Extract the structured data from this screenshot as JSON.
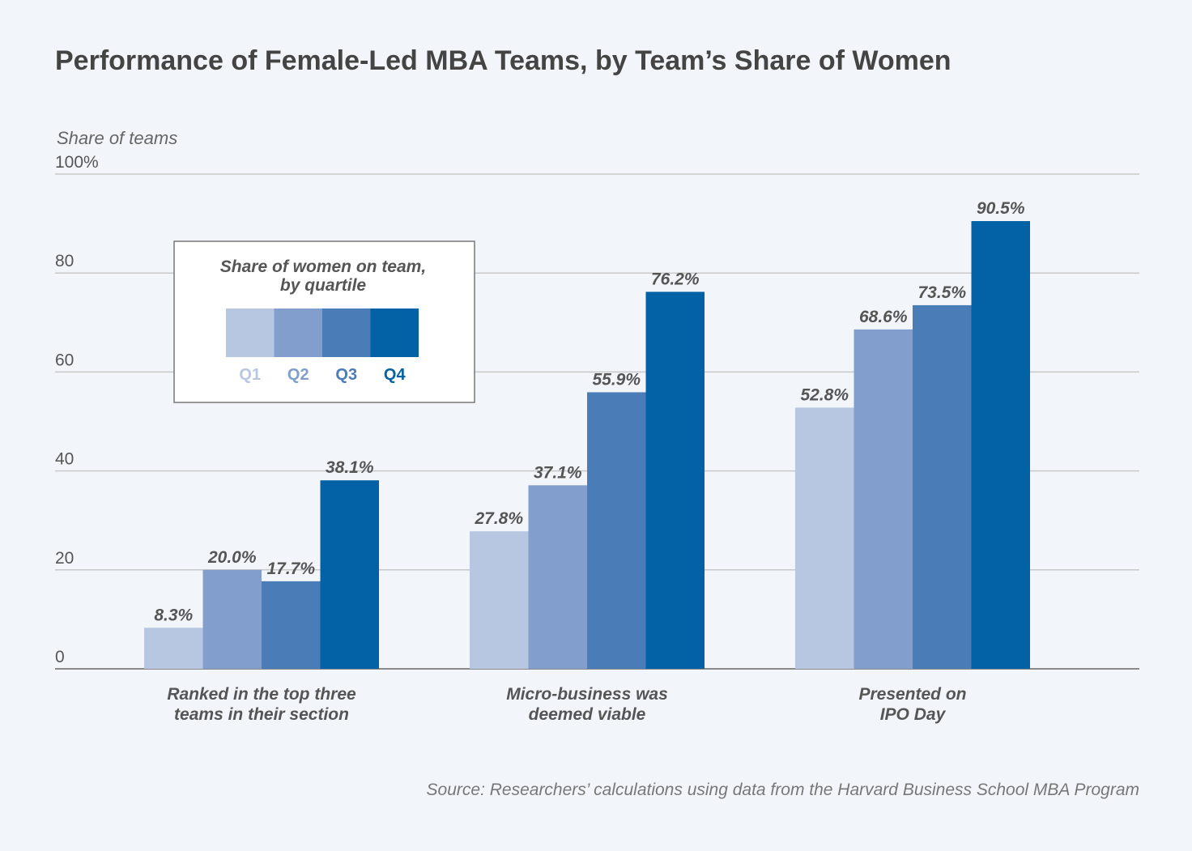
{
  "chart_data": {
    "type": "bar",
    "title": "Performance of Female-Led MBA Teams, by Team’s Share of Women",
    "ylabel": "Share of teams",
    "ylim": [
      0,
      100
    ],
    "yticks": [
      "0",
      "20",
      "40",
      "60",
      "80",
      "100%"
    ],
    "yticks_values": [
      0,
      20,
      40,
      60,
      80,
      100
    ],
    "grid": true,
    "categories": [
      [
        "Ranked in the top three",
        "teams in their section"
      ],
      [
        "Micro-business was",
        "deemed viable"
      ],
      [
        "Presented on",
        "IPO Day"
      ]
    ],
    "series": [
      {
        "name": "Q1",
        "color": "#b8c7e1",
        "values": [
          8.3,
          27.8,
          52.8
        ],
        "labels": [
          "8.3%",
          "27.8%",
          "52.8%"
        ]
      },
      {
        "name": "Q2",
        "color": "#829ecc",
        "values": [
          20.0,
          37.1,
          68.6
        ],
        "labels": [
          "20.0%",
          "37.1%",
          "68.6%"
        ]
      },
      {
        "name": "Q3",
        "color": "#4a7cb7",
        "values": [
          17.7,
          55.9,
          73.5
        ],
        "labels": [
          "17.7%",
          "55.9%",
          "73.5%"
        ]
      },
      {
        "name": "Q4",
        "color": "#0262a5",
        "values": [
          38.1,
          76.2,
          90.5
        ],
        "labels": [
          "38.1%",
          "76.2%",
          "90.5%"
        ]
      }
    ],
    "legend": {
      "title_lines": [
        "Share of women on team,",
        "by quartile"
      ],
      "placement": "upper-left"
    },
    "source": "Source: Researchers’ calculations using data from the Harvard Business School MBA Program"
  }
}
